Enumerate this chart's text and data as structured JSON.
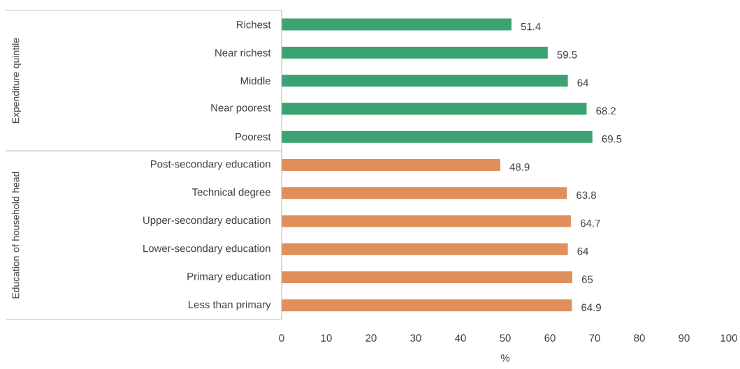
{
  "chart_data": {
    "type": "bar",
    "orientation": "horizontal",
    "categories": [
      "Richest",
      "Near richest",
      "Middle",
      "Near poorest",
      "Poorest",
      "Post-secondary education",
      "Technical degree",
      "Upper-secondary education",
      "Lower-secondary education",
      "Primary education",
      "Less than primary"
    ],
    "values": [
      51.4,
      59.5,
      64,
      68.2,
      69.5,
      48.9,
      63.8,
      64.7,
      64,
      65,
      64.9
    ],
    "colors": [
      "#3ba272",
      "#3ba272",
      "#3ba272",
      "#3ba272",
      "#3ba272",
      "#e08f5c",
      "#e08f5c",
      "#e08f5c",
      "#e08f5c",
      "#e08f5c",
      "#e08f5c"
    ],
    "xlabel": "%",
    "xlim": [
      0,
      100
    ],
    "xticks": [
      0,
      10,
      20,
      30,
      40,
      50,
      60,
      70,
      80,
      90,
      100
    ],
    "annotations": [
      "Expenditure quintile",
      "Education of household head"
    ],
    "data_labels": true
  }
}
